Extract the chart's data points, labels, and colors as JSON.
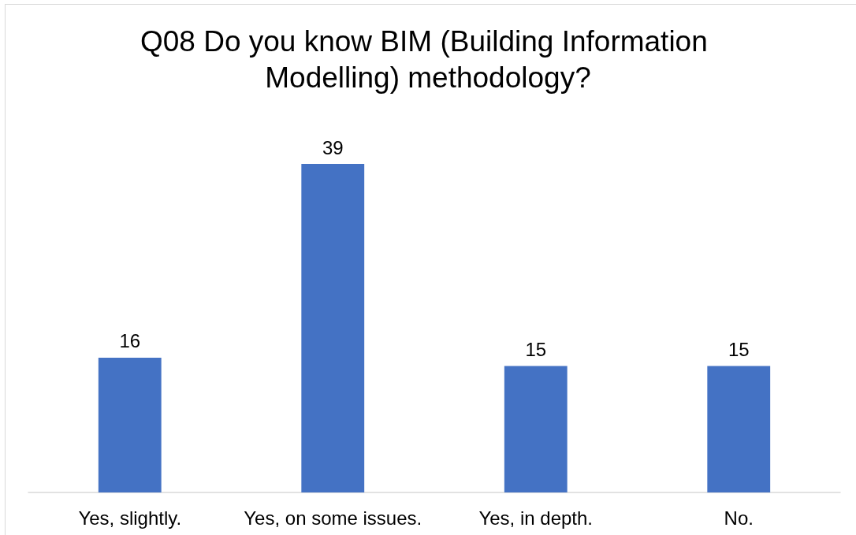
{
  "chart_data": {
    "type": "bar",
    "title": "Q08 Do you know BIM (Building Information Modelling) methodology?",
    "categories": [
      "Yes, slightly.",
      "Yes, on some issues.",
      "Yes, in depth.",
      "No."
    ],
    "values": [
      16,
      39,
      15,
      15
    ],
    "color": "#4472c4",
    "data_labels": true,
    "tick_labels": "x"
  }
}
